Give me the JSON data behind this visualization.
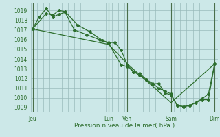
{
  "title": "Pression niveau de la mer( hPa )",
  "bg_color": "#cce8e8",
  "grid_color": "#99bbbb",
  "line_color": "#2d6e2d",
  "vline_color": "#4a6e4a",
  "ylim": [
    1008.5,
    1019.8
  ],
  "yticks": [
    1009,
    1010,
    1011,
    1012,
    1013,
    1014,
    1015,
    1016,
    1017,
    1018,
    1019
  ],
  "xlim": [
    0,
    30
  ],
  "xtick_labels": [
    "Jeu",
    "Lun",
    "Ven",
    "Sam",
    "Dim"
  ],
  "xtick_positions": [
    0.3,
    12.5,
    15.5,
    22.5,
    29.5
  ],
  "vline_positions": [
    0.3,
    12.5,
    15.5,
    22.5,
    29.5
  ],
  "series1": {
    "x": [
      0.3,
      1.3,
      2.5,
      3.5,
      4.5,
      5.5,
      7.0,
      9.0,
      11.0,
      12.5,
      13.5,
      14.5,
      15.5,
      16.5,
      17.5,
      18.5,
      19.5,
      20.5,
      21.5,
      22.5,
      23.5,
      24.5,
      25.5,
      26.5,
      27.5,
      28.5,
      29.5
    ],
    "y": [
      1017.1,
      1018.3,
      1019.2,
      1018.3,
      1018.6,
      1018.8,
      1017.0,
      1016.5,
      1016.0,
      1015.7,
      1015.7,
      1014.9,
      1013.4,
      1012.7,
      1012.5,
      1011.9,
      1011.5,
      1011.0,
      1010.7,
      1010.4,
      1009.2,
      1009.1,
      1009.2,
      1009.5,
      1009.8,
      1009.8,
      1013.5
    ]
  },
  "series2": {
    "x": [
      0.3,
      2.5,
      3.5,
      4.5,
      5.5,
      7.5,
      9.5,
      11.5,
      12.5,
      14.5,
      15.5,
      16.5,
      17.5,
      18.5,
      19.5,
      20.5,
      21.5,
      22.5,
      23.5,
      24.5,
      25.5,
      27.5,
      28.5,
      29.5
    ],
    "y": [
      1017.1,
      1018.7,
      1018.5,
      1019.0,
      1018.9,
      1017.5,
      1016.8,
      1015.9,
      1015.6,
      1013.4,
      1013.2,
      1012.7,
      1012.3,
      1011.8,
      1011.4,
      1011.5,
      1010.5,
      1010.3,
      1009.2,
      1009.1,
      1009.2,
      1009.9,
      1010.4,
      1013.5
    ]
  },
  "series3": {
    "x": [
      0.3,
      12.5,
      15.5,
      22.5,
      29.5
    ],
    "y": [
      1017.1,
      1015.5,
      1013.5,
      1009.5,
      1013.5
    ]
  }
}
